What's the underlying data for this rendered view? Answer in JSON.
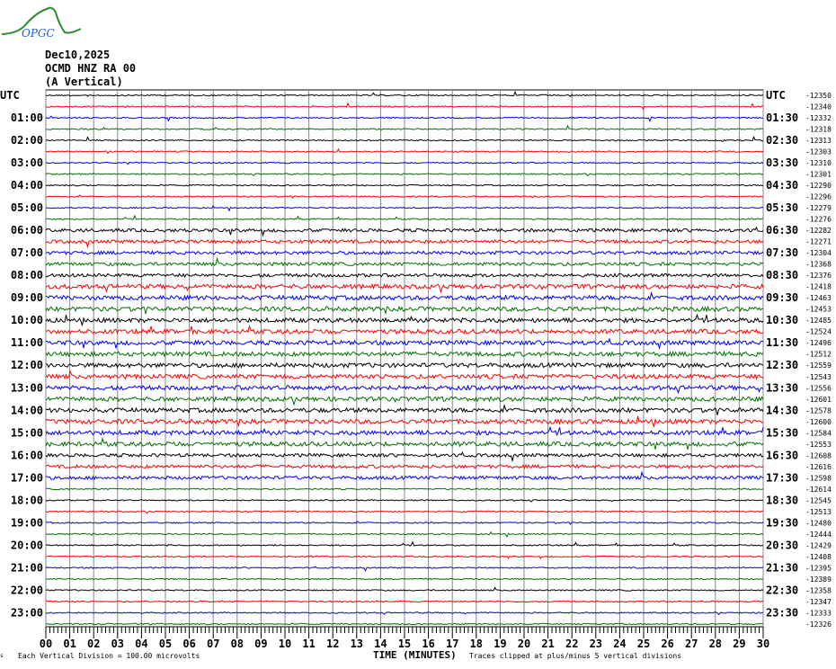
{
  "logo": {
    "text": "OPGC",
    "colors": {
      "curve": "#2e8b2e",
      "text": "#1e5bd6"
    }
  },
  "header": {
    "date": "Dec10,2025",
    "station": "OCMD HNZ RA 00",
    "component": "(A Vertical)"
  },
  "footer": {
    "scale_note": "Each Vertical Division =  100.00 microvolts",
    "xlabel": "TIME (MINUTES)",
    "clip_note": "Traces clipped at plus/minus 5 vertical divisions"
  },
  "chart_data": {
    "type": "line",
    "title": "",
    "xlabel": "TIME (MINUTES)",
    "xlim": [
      0,
      30
    ],
    "x_ticks": [
      "00",
      "01",
      "02",
      "03",
      "04",
      "05",
      "06",
      "07",
      "08",
      "09",
      "10",
      "11",
      "12",
      "13",
      "14",
      "15",
      "16",
      "17",
      "18",
      "19",
      "20",
      "21",
      "22",
      "23",
      "24",
      "25",
      "26",
      "27",
      "28",
      "29",
      "30"
    ],
    "grid": true,
    "trace_colors": [
      "#000000",
      "#ff0000",
      "#0000ff",
      "#007000"
    ],
    "left_labels": [
      "UTC",
      "01:00",
      "02:00",
      "03:00",
      "04:00",
      "05:00",
      "06:00",
      "07:00",
      "08:00",
      "09:00",
      "10:00",
      "11:00",
      "12:00",
      "13:00",
      "14:00",
      "15:00",
      "16:00",
      "17:00",
      "18:00",
      "19:00",
      "20:00",
      "21:00",
      "22:00",
      "23:00"
    ],
    "right_labels": [
      "UTC",
      "01:30",
      "02:30",
      "03:30",
      "04:30",
      "05:30",
      "06:30",
      "07:30",
      "08:30",
      "09:30",
      "10:30",
      "11:30",
      "12:30",
      "13:30",
      "14:30",
      "15:30",
      "16:30",
      "17:30",
      "18:30",
      "19:30",
      "20:30",
      "21:30",
      "22:30",
      "23:30"
    ],
    "trace_offsets": [
      "-12350",
      "-12340",
      "-12332",
      "-12318",
      "-12313",
      "-12303",
      "-12310",
      "-12301",
      "-12290",
      "-12296",
      "-12279",
      "-12276",
      "-12282",
      "-12271",
      "-12304",
      "-12368",
      "-12376",
      "-12418",
      "-12463",
      "-12453",
      "-12485",
      "-12524",
      "-12496",
      "-12512",
      "-12559",
      "-12543",
      "-12556",
      "-12601",
      "-12578",
      "-12600",
      "-12584",
      "-12553",
      "-12608",
      "-12616",
      "-12598",
      "-12614",
      "-12545",
      "-12513",
      "-12480",
      "-12444",
      "-12429",
      "-12408",
      "-12395",
      "-12389",
      "-12358",
      "-12347",
      "-12333",
      "-12326"
    ]
  }
}
